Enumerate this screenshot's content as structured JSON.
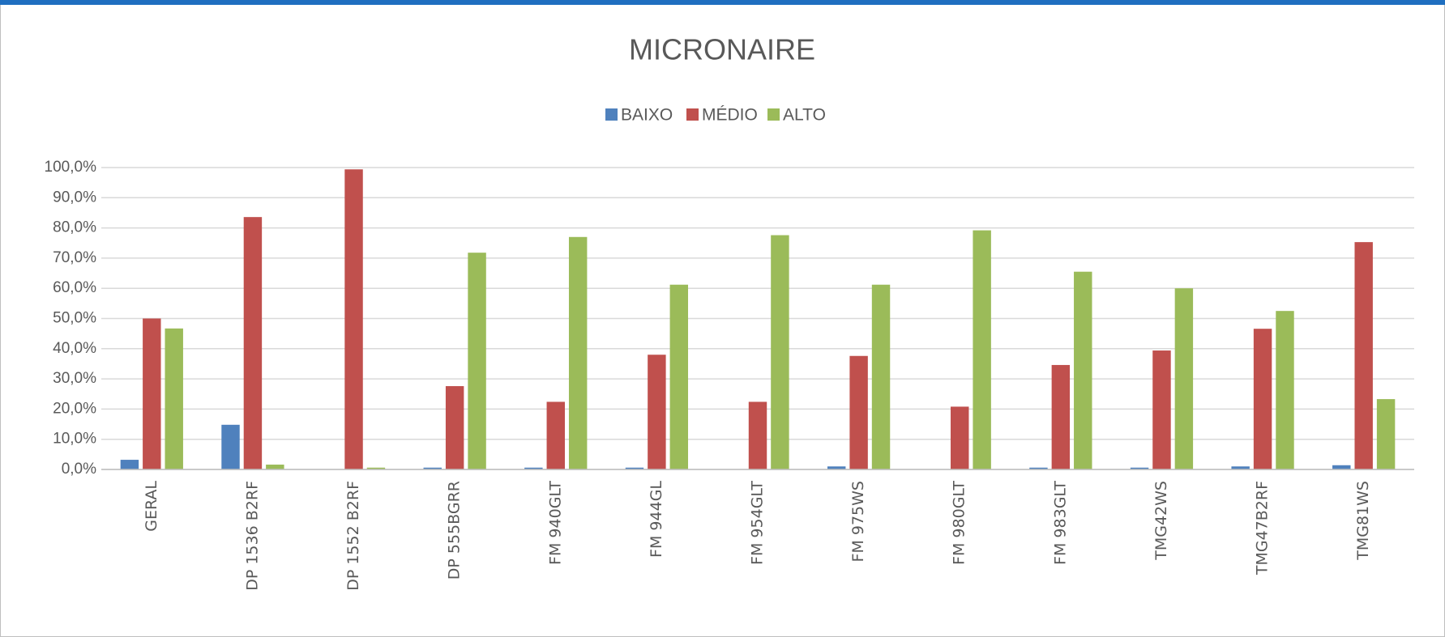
{
  "chart_data": {
    "type": "bar",
    "title": "MICRONAIRE",
    "categories": [
      "GERAL",
      "DP 1536 B2RF",
      "DP 1552 B2RF",
      "DP 555BGRR",
      "FM 940GLT",
      "FM 944GL",
      "FM 954GLT",
      "FM 975WS",
      "FM 980GLT",
      "FM 983GLT",
      "TMG42WS",
      "TMG47B2RF",
      "TMG81WS"
    ],
    "series": [
      {
        "name": "BAIXO",
        "color": "#4f81bd",
        "values": [
          3.2,
          14.8,
          0,
          0.6,
          0.6,
          0.6,
          0,
          1.0,
          0,
          0.6,
          0.6,
          1.0,
          1.4
        ]
      },
      {
        "name": "MÉDIO",
        "color": "#c0504d",
        "values": [
          50.0,
          83.6,
          99.4,
          27.6,
          22.4,
          38.0,
          22.4,
          37.6,
          20.8,
          34.6,
          39.4,
          46.6,
          75.3
        ]
      },
      {
        "name": "ALTO",
        "color": "#9bbb59",
        "values": [
          46.7,
          1.6,
          0.6,
          71.8,
          77.0,
          61.2,
          77.6,
          61.2,
          79.2,
          65.5,
          60.0,
          52.5,
          23.3
        ]
      }
    ],
    "ylim": [
      0,
      100
    ],
    "yticks": [
      {
        "value": 0,
        "label": "0,0%"
      },
      {
        "value": 10,
        "label": "10,0%"
      },
      {
        "value": 20,
        "label": "20,0%"
      },
      {
        "value": 30,
        "label": "30,0%"
      },
      {
        "value": 40,
        "label": "40,0%"
      },
      {
        "value": 50,
        "label": "50,0%"
      },
      {
        "value": 60,
        "label": "60,0%"
      },
      {
        "value": 70,
        "label": "70,0%"
      },
      {
        "value": 80,
        "label": "80,0%"
      },
      {
        "value": 90,
        "label": "90,0%"
      },
      {
        "value": 100,
        "label": "100,0%"
      }
    ],
    "grid": true,
    "legend": "top"
  }
}
